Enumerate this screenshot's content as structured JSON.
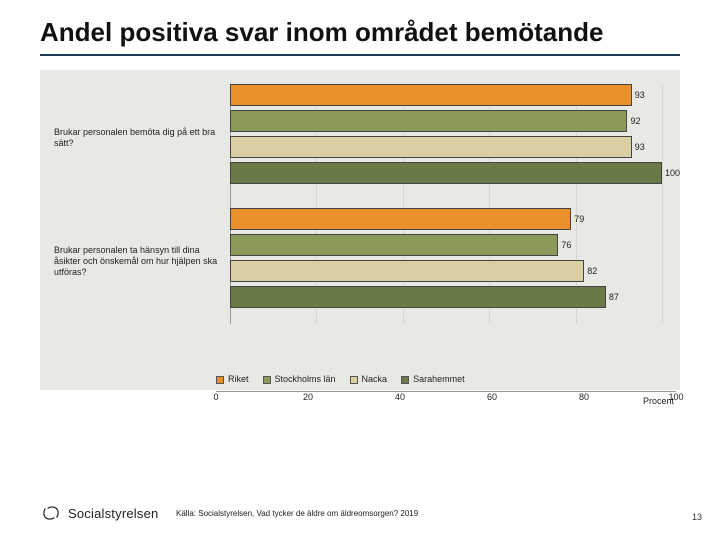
{
  "title": "Andel positiva svar inom området bemötande",
  "chart": {
    "type": "bar",
    "orientation": "horizontal",
    "background_color": "#e8e8e4",
    "xlim": [
      0,
      100
    ],
    "xtick_step": 20,
    "xticks": [
      0,
      20,
      40,
      60,
      80,
      100
    ],
    "xunit_label": "Procent",
    "bar_border_color": "#444444",
    "grid_color": "#d6d6d2",
    "groups": [
      {
        "label": "Brukar personalen bemöta dig på ett bra sätt?",
        "bars": [
          {
            "series": "Riket",
            "value": 93
          },
          {
            "series": "Stockholms län",
            "value": 92
          },
          {
            "series": "Nacka",
            "value": 93
          },
          {
            "series": "Sarahemmet",
            "value": 100
          }
        ]
      },
      {
        "label": "Brukar personalen ta hänsyn till dina åsikter och önskemål om hur hjälpen ska utföras?",
        "bars": [
          {
            "series": "Riket",
            "value": 79
          },
          {
            "series": "Stockholms län",
            "value": 76
          },
          {
            "series": "Nacka",
            "value": 82
          },
          {
            "series": "Sarahemmet",
            "value": 87
          }
        ]
      }
    ],
    "series": [
      {
        "name": "Riket",
        "color": "#e98f2c"
      },
      {
        "name": "Stockholms län",
        "color": "#8a9a5b"
      },
      {
        "name": "Nacka",
        "color": "#d9cfa3"
      },
      {
        "name": "Sarahemmet",
        "color": "#6a7a47"
      }
    ]
  },
  "source": "Källa: Socialstyrelsen, Vad tycker de äldre om äldreomsorgen? 2019",
  "logo_text": "Socialstyrelsen",
  "page_number": "13"
}
